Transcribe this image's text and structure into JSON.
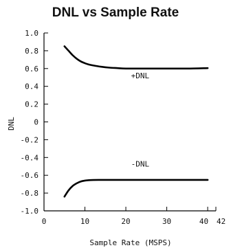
{
  "chart_data": {
    "type": "line",
    "title": "DNL vs Sample Rate",
    "xlabel": "Sample Rate (MSPS)",
    "ylabel": "DNL",
    "xlim": [
      0,
      42
    ],
    "ylim": [
      -1.0,
      1.0
    ],
    "x_ticks": [
      0,
      10,
      20,
      30,
      40,
      42
    ],
    "y_ticks": [
      1.0,
      0.8,
      0.6,
      0.4,
      0.2,
      0,
      -0.2,
      -0.4,
      -0.6,
      -0.8,
      -1.0
    ],
    "x_tick_labels": [
      "0",
      "10",
      "20",
      "30",
      "40",
      "42"
    ],
    "y_tick_labels": [
      "1.0",
      "0.8",
      "0.6",
      "0.4",
      "0.2",
      "0",
      "-0.2",
      "-0.4",
      "-0.6",
      "-0.8",
      "-1.0"
    ],
    "grid": false,
    "series": [
      {
        "name": "+DNL",
        "x": [
          5,
          6,
          7,
          8,
          9,
          10,
          11,
          12,
          14,
          16,
          18,
          20,
          25,
          30,
          35,
          40
        ],
        "y": [
          0.85,
          0.8,
          0.75,
          0.71,
          0.68,
          0.66,
          0.645,
          0.635,
          0.62,
          0.61,
          0.605,
          0.6,
          0.6,
          0.6,
          0.6,
          0.605
        ]
      },
      {
        "name": "-DNL",
        "x": [
          5,
          6,
          7,
          8,
          9,
          10,
          11,
          12,
          14,
          16,
          18,
          20,
          25,
          30,
          35,
          40
        ],
        "y": [
          -0.84,
          -0.77,
          -0.72,
          -0.69,
          -0.67,
          -0.66,
          -0.655,
          -0.653,
          -0.652,
          -0.652,
          -0.652,
          -0.652,
          -0.652,
          -0.652,
          -0.652,
          -0.652
        ]
      }
    ],
    "annotations": [
      {
        "text": "+DNL",
        "x": 23.5,
        "y": 0.49
      },
      {
        "text": "-DNL",
        "x": 23.5,
        "y": -0.5
      }
    ],
    "colors": {
      "line": "#000000",
      "axis": "#000000",
      "text": "#111111"
    }
  }
}
